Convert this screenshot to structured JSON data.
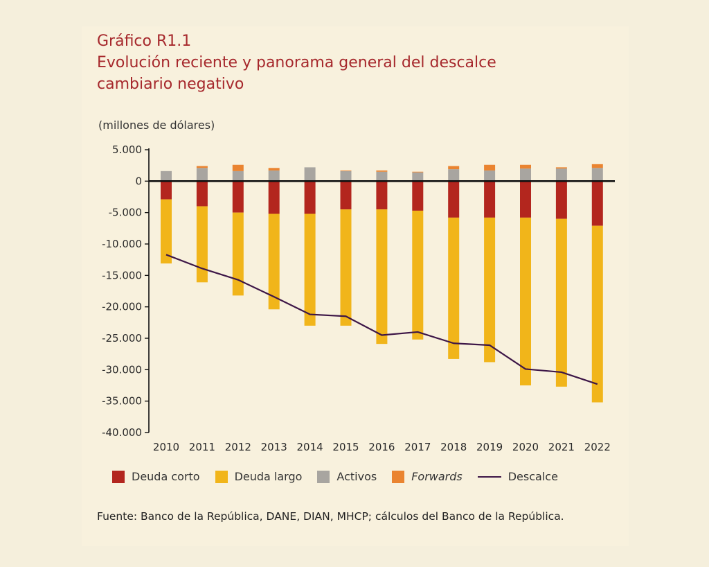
{
  "figure": {
    "label": "Gráfico R1.1",
    "title_line1": "Evolución reciente y panorama general del descalce",
    "title_line2": "cambiario negativo",
    "units": "(millones de dólares)",
    "source": "Fuente: Banco de la República, DANE, DIAN, MHCP; cálculos del Banco de la República."
  },
  "chart_data": {
    "type": "bar",
    "stacked": true,
    "categories": [
      "2010",
      "2011",
      "2012",
      "2013",
      "2014",
      "2015",
      "2016",
      "2017",
      "2018",
      "2019",
      "2020",
      "2021",
      "2022"
    ],
    "ylim": [
      -40000,
      5000
    ],
    "yticks": [
      5000,
      0,
      -5000,
      -10000,
      -15000,
      -20000,
      -25000,
      -30000,
      -35000,
      -40000
    ],
    "ytick_labels": [
      "5.000",
      "0",
      "-5.000",
      "-10.000",
      "-15.000",
      "-20.000",
      "-25.000",
      "-30.000",
      "-35.000",
      "-40.000"
    ],
    "series": [
      {
        "name": "Deuda corto",
        "kind": "bar",
        "color": "#b3261e",
        "values": [
          -2900,
          -4000,
          -5000,
          -5200,
          -5200,
          -4500,
          -4500,
          -4700,
          -5800,
          -5800,
          -5800,
          -6000,
          -7100
        ]
      },
      {
        "name": "Deuda largo",
        "kind": "bar",
        "color": "#f1b51a",
        "values": [
          -10200,
          -12100,
          -13200,
          -15200,
          -17800,
          -18500,
          -21400,
          -20500,
          -22500,
          -23000,
          -26700,
          -26700,
          -28100
        ]
      },
      {
        "name": "Activos",
        "kind": "bar",
        "color": "#a8a5a0",
        "values": [
          1600,
          2100,
          1600,
          1700,
          2200,
          1600,
          1500,
          1400,
          1900,
          1700,
          2000,
          2000,
          2100
        ]
      },
      {
        "name": "Forwards",
        "kind": "bar",
        "color": "#ea8430",
        "values": [
          0,
          300,
          1000,
          400,
          0,
          100,
          200,
          100,
          500,
          900,
          600,
          200,
          600
        ]
      },
      {
        "name": "Descalce",
        "kind": "line",
        "color": "#3d1647",
        "values": [
          -11700,
          -13900,
          -15700,
          -18400,
          -21200,
          -21500,
          -24500,
          -24000,
          -25800,
          -26100,
          -29900,
          -30400,
          -32300
        ]
      }
    ]
  }
}
